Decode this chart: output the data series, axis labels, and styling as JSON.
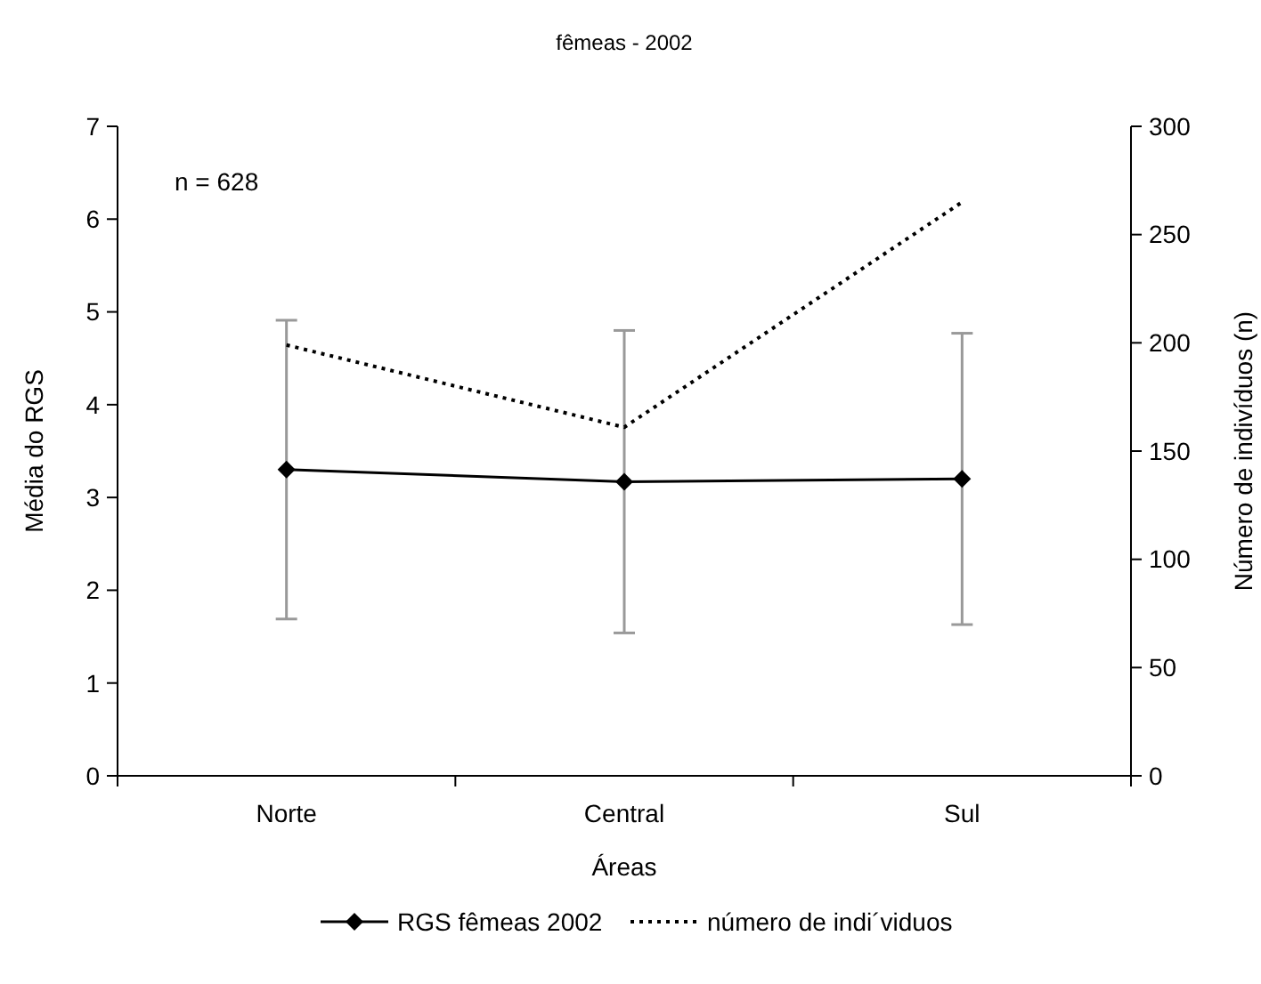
{
  "chart_data": {
    "type": "line",
    "title": "fêmeas - 2002",
    "xlabel": "Áreas",
    "ylabel": "Média do RGS",
    "y2label": "Número de indivíduos (n)",
    "categories": [
      "Norte",
      "Central",
      "Sul"
    ],
    "series": [
      {
        "name": "RGS fêmeas 2002",
        "color": "#000000",
        "values": [
          3.3,
          3.17,
          3.2
        ],
        "errors": [
          1.61,
          1.63,
          1.57
        ],
        "marker": "diamond",
        "line_style": "solid"
      },
      {
        "name": "número de indi´viduos",
        "color": "#000000",
        "values": [
          199,
          161,
          265
        ],
        "axis": "y2",
        "marker": "none",
        "line_style": "dotted"
      }
    ],
    "ylim": [
      0,
      7
    ],
    "yticks": [
      0,
      1,
      2,
      3,
      4,
      5,
      6,
      7
    ],
    "y2lim": [
      0,
      300
    ],
    "y2ticks": [
      0,
      50,
      100,
      150,
      200,
      250,
      300
    ],
    "annotations": [
      "n = 628"
    ],
    "grid": false,
    "legend": "bottom"
  }
}
